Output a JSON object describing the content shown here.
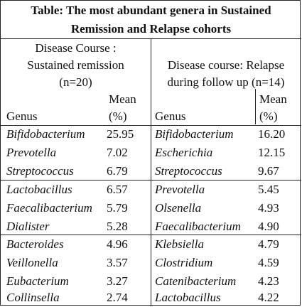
{
  "table": {
    "title_line1": "Table: The most abundant genera in Sustained",
    "title_line2": "Remission and Relapse cohorts",
    "left": {
      "course_line1": "Disease Course :",
      "course_line2": "Sustained remission",
      "course_line3": "(n=20)",
      "genus_header": "Genus",
      "mean_header_line1": "Mean",
      "mean_header_line2": "(%)",
      "rows": [
        {
          "genus": "Bifidobacterium",
          "mean": "25.95"
        },
        {
          "genus": "Prevotella",
          "mean": "7.02"
        },
        {
          "genus": "Streptococcus",
          "mean": "6.79"
        },
        {
          "genus": "Lactobacillus",
          "mean": "6.57"
        },
        {
          "genus": "Faecalibacterium",
          "mean": "5.79"
        },
        {
          "genus": "Dialister",
          "mean": "5.28"
        },
        {
          "genus": "Bacteroides",
          "mean": "4.96"
        },
        {
          "genus": "Veillonella",
          "mean": "3.57"
        },
        {
          "genus": "Eubacterium",
          "mean": "3.27"
        },
        {
          "genus": "Collinsella",
          "mean": "2.74"
        }
      ]
    },
    "right": {
      "course_line1": "Disease course: Relapse",
      "course_line2": "during follow up (n=14)",
      "genus_header": "Genus",
      "mean_header_line1": "Mean",
      "mean_header_line2": "(%)",
      "rows": [
        {
          "genus": "Bifidobacterium",
          "mean": "16.20"
        },
        {
          "genus": "Escherichia",
          "mean": "12.15"
        },
        {
          "genus": "Streptococcus",
          "mean": "9.67"
        },
        {
          "genus": "Prevotella",
          "mean": "5.45"
        },
        {
          "genus": "Olsenella",
          "mean": "4.93"
        },
        {
          "genus": "Faecalibacterium",
          "mean": "4.90"
        },
        {
          "genus": "Klebsiella",
          "mean": "4.79"
        },
        {
          "genus": "Clostridium",
          "mean": "4.59"
        },
        {
          "genus": "Catenibacterium",
          "mean": "4.23"
        },
        {
          "genus": "Lactobacillus",
          "mean": "4.22"
        }
      ]
    }
  }
}
